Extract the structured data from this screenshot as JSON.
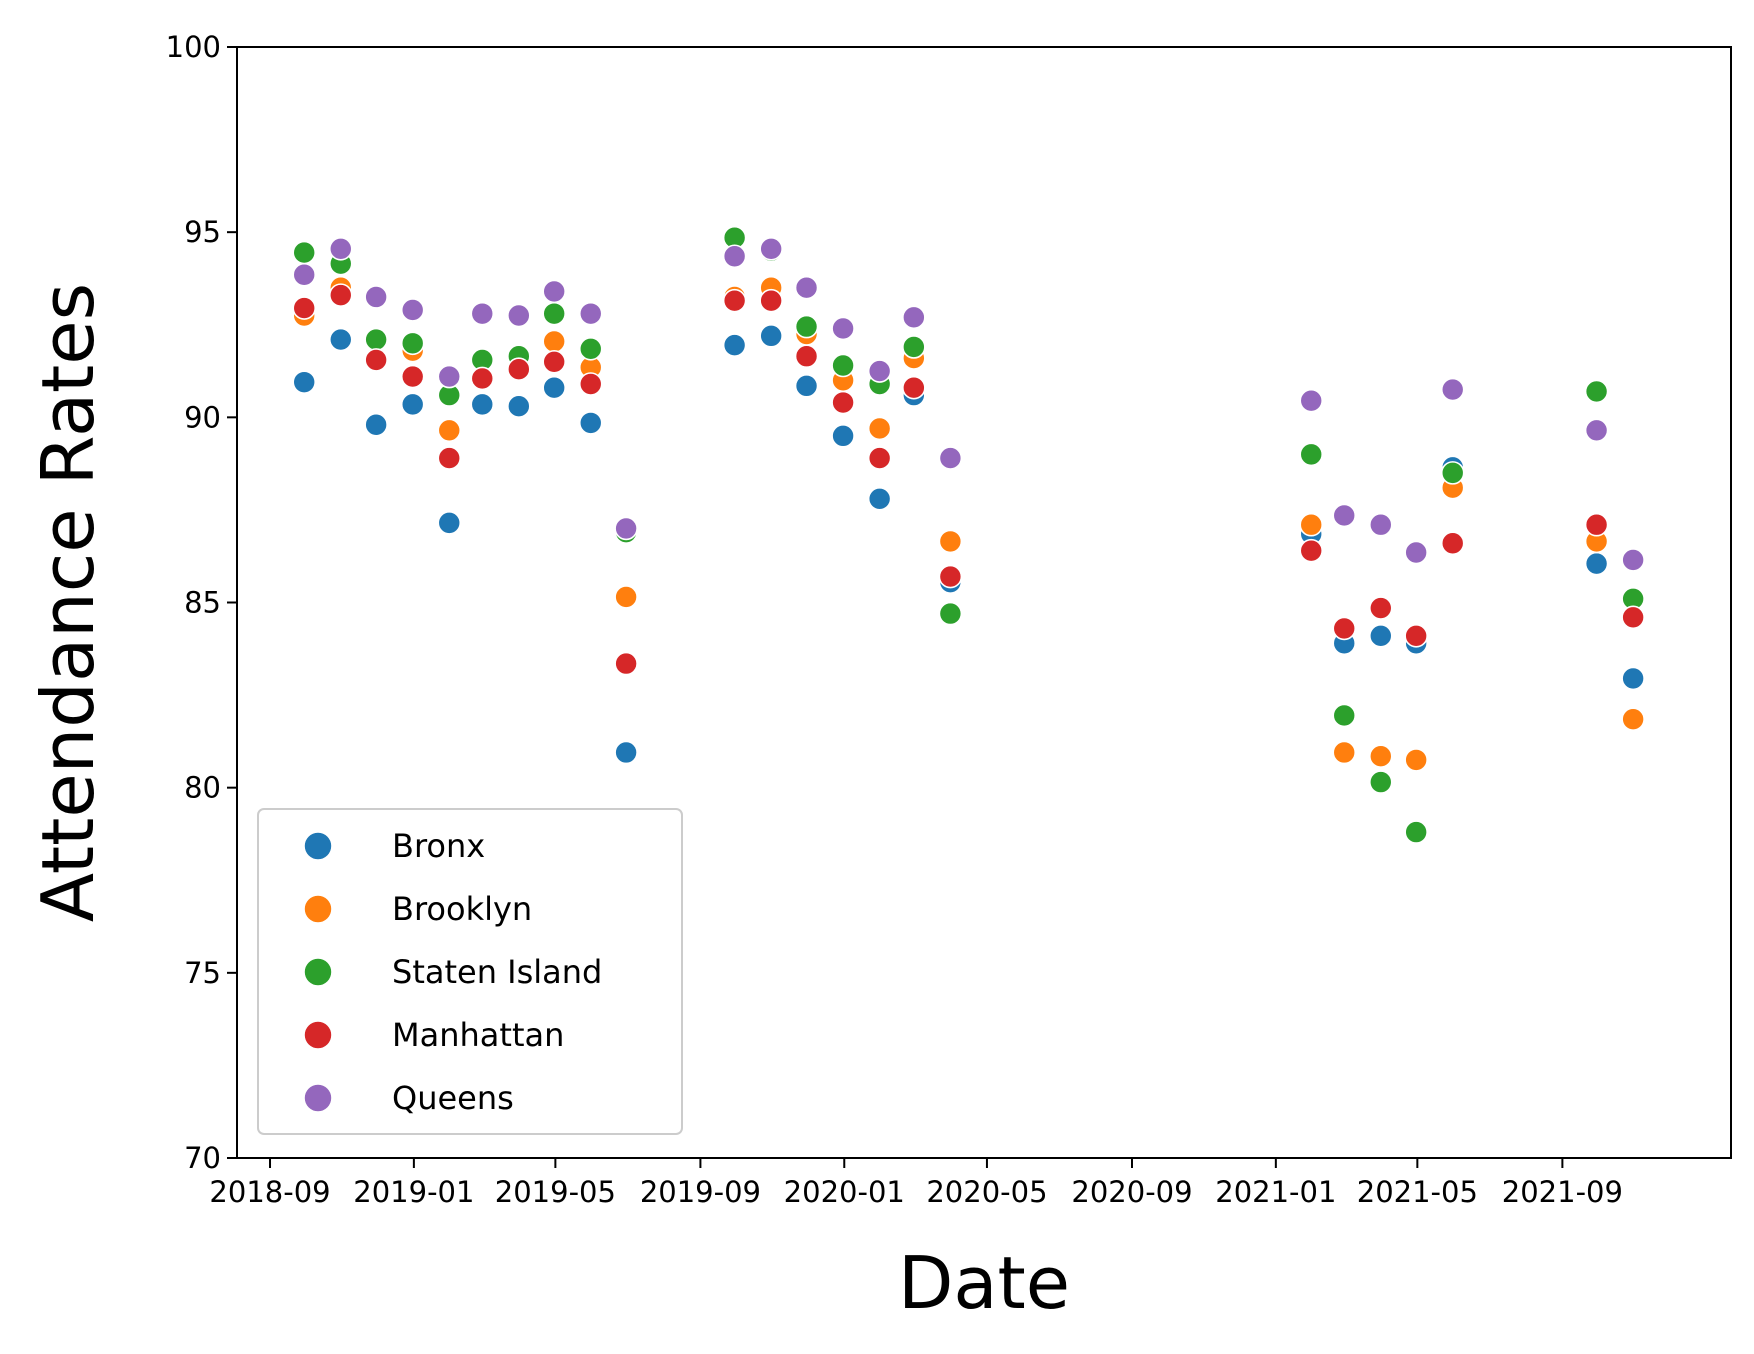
{
  "chart_data": {
    "type": "scatter",
    "title": "",
    "xlabel": "Date",
    "ylabel": "Attendance Rates",
    "ylim": [
      70,
      100
    ],
    "xlim": [
      "2018-08-04",
      "2022-01-22"
    ],
    "yticks": [
      70,
      75,
      80,
      85,
      90,
      95,
      100
    ],
    "xticks": [
      "2018-09",
      "2019-01",
      "2019-05",
      "2019-09",
      "2020-01",
      "2020-05",
      "2020-09",
      "2021-01",
      "2021-05",
      "2021-09"
    ],
    "grid": false,
    "legend_position": "lower-left",
    "x": [
      "2018-09-30",
      "2018-10-31",
      "2018-11-30",
      "2018-12-31",
      "2019-01-31",
      "2019-02-28",
      "2019-03-31",
      "2019-04-30",
      "2019-05-31",
      "2019-06-30",
      "2019-09-30",
      "2019-10-31",
      "2019-11-30",
      "2019-12-31",
      "2020-01-31",
      "2020-02-29",
      "2020-03-31",
      "2021-01-31",
      "2021-02-28",
      "2021-03-31",
      "2021-04-30",
      "2021-05-31",
      "2021-09-30",
      "2021-10-31"
    ],
    "series": [
      {
        "name": "Bronx",
        "color": "#1f77b4",
        "values": [
          90.95,
          92.1,
          89.8,
          90.35,
          87.15,
          90.35,
          90.3,
          90.8,
          89.85,
          80.95,
          91.95,
          92.2,
          90.85,
          89.5,
          87.8,
          90.6,
          85.55,
          86.85,
          83.9,
          84.1,
          83.9,
          88.65,
          86.05,
          82.95
        ]
      },
      {
        "name": "Brooklyn",
        "color": "#ff7f0e",
        "values": [
          92.75,
          93.5,
          91.6,
          91.8,
          89.65,
          91.1,
          91.4,
          92.05,
          91.35,
          85.15,
          93.25,
          93.5,
          92.25,
          91.0,
          89.7,
          91.6,
          86.65,
          87.1,
          80.95,
          80.85,
          80.75,
          88.1,
          86.65,
          81.85
        ]
      },
      {
        "name": "Staten Island",
        "color": "#2ca02c",
        "values": [
          94.45,
          94.15,
          92.1,
          92.0,
          90.6,
          91.55,
          91.65,
          92.8,
          91.85,
          86.9,
          94.85,
          94.5,
          92.45,
          91.4,
          90.9,
          91.9,
          84.7,
          89.0,
          81.95,
          80.15,
          78.8,
          88.5,
          90.7,
          85.1
        ]
      },
      {
        "name": "Manhattan",
        "color": "#d62728",
        "values": [
          92.95,
          93.3,
          91.55,
          91.1,
          88.9,
          91.05,
          91.3,
          91.5,
          90.9,
          83.35,
          93.15,
          93.15,
          91.65,
          90.4,
          88.9,
          90.8,
          85.7,
          86.4,
          84.3,
          84.85,
          84.1,
          86.6,
          87.1,
          84.6
        ]
      },
      {
        "name": "Queens",
        "color": "#9467bd",
        "values": [
          93.85,
          94.55,
          93.25,
          92.9,
          91.1,
          92.8,
          92.75,
          93.4,
          92.8,
          87.0,
          94.35,
          94.55,
          93.5,
          92.4,
          91.25,
          92.7,
          88.9,
          90.45,
          87.35,
          87.1,
          86.35,
          90.75,
          89.65,
          86.15
        ]
      }
    ]
  }
}
